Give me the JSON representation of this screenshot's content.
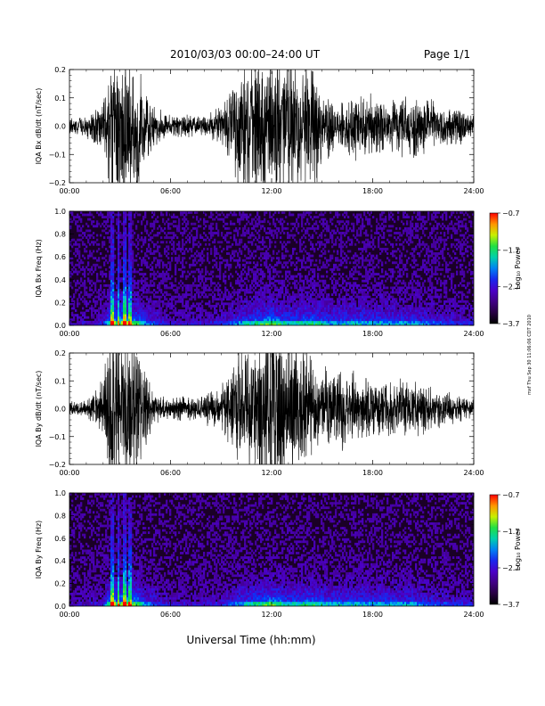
{
  "header": {
    "title": "2010/03/03  00:00–24:00 UT",
    "page": "Page 1/1"
  },
  "footer": {
    "xlabel": "Universal Time (hh:mm)",
    "timestamp": "mxf Thu Sep 30 11:06:06 CDT 2010"
  },
  "colorbar_label": "Log₁₀ Power",
  "chart_data": [
    {
      "type": "line",
      "ylabel": "IQA Bx dB/dt (nT/sec)",
      "xlim": [
        0,
        24
      ],
      "ylim": [
        -0.2,
        0.2
      ],
      "xticks": [
        "00:00",
        "06:00",
        "12:00",
        "18:00",
        "24:00"
      ],
      "yticks": [
        "−0.2",
        "−0.1",
        "0.0",
        "0.1",
        "0.2"
      ],
      "series": [
        {
          "x_hours": [
            0,
            1,
            2,
            2.5,
            3,
            3.5,
            4,
            4.5,
            5,
            6,
            8,
            9,
            10,
            11,
            12,
            13,
            14,
            14.5,
            15,
            16,
            17,
            18,
            19,
            20,
            21,
            22,
            23,
            24
          ],
          "amplitude": [
            0.02,
            0.03,
            0.06,
            0.2,
            0.22,
            0.2,
            0.18,
            0.1,
            0.05,
            0.03,
            0.03,
            0.05,
            0.15,
            0.2,
            0.22,
            0.2,
            0.16,
            0.2,
            0.09,
            0.06,
            0.09,
            0.08,
            0.07,
            0.08,
            0.08,
            0.06,
            0.05,
            0.03
          ]
        }
      ]
    },
    {
      "type": "heatmap",
      "ylabel": "IQA Bx Freq (Hz)",
      "xlim": [
        0,
        24
      ],
      "ylim": [
        0,
        1.0
      ],
      "xticks": [
        "00:00",
        "06:00",
        "12:00",
        "18:00",
        "24:00"
      ],
      "yticks": [
        "0.0",
        "0.2",
        "0.4",
        "0.6",
        "0.8",
        "1.0"
      ],
      "colorbar": {
        "label": "Log₁₀ Power",
        "range": [
          -3.7,
          -0.7
        ],
        "ticks": [
          "−3.7",
          "−2.7",
          "−1.7",
          "−0.7"
        ]
      }
    },
    {
      "type": "line",
      "ylabel": "IQA By dB/dt (nT/sec)",
      "xlim": [
        0,
        24
      ],
      "ylim": [
        -0.2,
        0.2
      ],
      "xticks": [
        "00:00",
        "06:00",
        "12:00",
        "18:00",
        "24:00"
      ],
      "yticks": [
        "−0.2",
        "−0.1",
        "0.0",
        "0.1",
        "0.2"
      ],
      "series": [
        {
          "x_hours": [
            0,
            1,
            2,
            2.5,
            3,
            3.5,
            4,
            4.5,
            5,
            6,
            8,
            9,
            10,
            11,
            12,
            13,
            14,
            14.5,
            15,
            16,
            17,
            18,
            19,
            20,
            21,
            22,
            23,
            24
          ],
          "amplitude": [
            0.02,
            0.02,
            0.08,
            0.22,
            0.24,
            0.22,
            0.2,
            0.12,
            0.04,
            0.03,
            0.04,
            0.06,
            0.15,
            0.18,
            0.24,
            0.2,
            0.16,
            0.12,
            0.1,
            0.12,
            0.09,
            0.08,
            0.07,
            0.08,
            0.07,
            0.05,
            0.04,
            0.03
          ]
        }
      ]
    },
    {
      "type": "heatmap",
      "ylabel": "IQA By Freq (Hz)",
      "xlim": [
        0,
        24
      ],
      "ylim": [
        0,
        1.0
      ],
      "xticks": [
        "00:00",
        "06:00",
        "12:00",
        "18:00",
        "24:00"
      ],
      "yticks": [
        "0.0",
        "0.2",
        "0.4",
        "0.6",
        "0.8",
        "1.0"
      ],
      "colorbar": {
        "label": "Log₁₀ Power",
        "range": [
          -3.7,
          -0.7
        ],
        "ticks": [
          "−3.7",
          "−2.7",
          "−1.7",
          "−0.7"
        ]
      }
    }
  ]
}
